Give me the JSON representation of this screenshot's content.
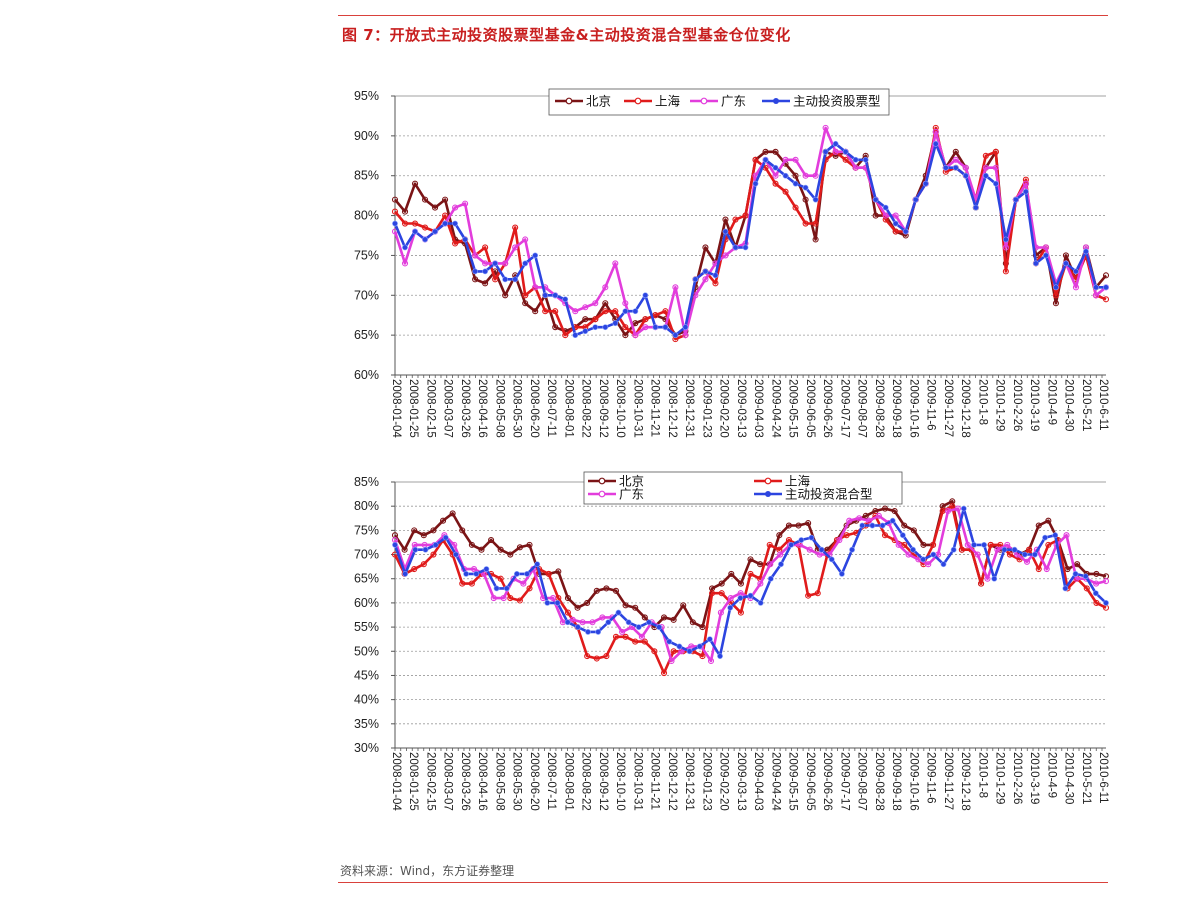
{
  "title": "图 7：开放式主动投资股票型基金&主动投资混合型基金仓位变化",
  "source": "资料来源：Wind，东方证券整理",
  "colors": {
    "beijing": "#7b1416",
    "shanghai": "#e01b1b",
    "guangdong": "#e23ddc",
    "fund": "#2c45e0",
    "accent": "#c81f1f"
  },
  "chart_data": [
    {
      "type": "line",
      "title": "",
      "ylim": [
        60,
        95
      ],
      "y_ticks": [
        "95%",
        "90%",
        "85%",
        "80%",
        "75%",
        "70%",
        "65%",
        "60%"
      ],
      "x_ticks": [
        "2008-01-04",
        "2008-01-25",
        "2008-02-15",
        "2008-03-07",
        "2008-03-26",
        "2008-04-16",
        "2008-05-08",
        "2008-05-30",
        "2008-06-20",
        "2008-07-11",
        "2008-08-01",
        "2008-08-22",
        "2008-09-12",
        "2008-10-10",
        "2008-10-31",
        "2008-11-21",
        "2008-12-12",
        "2008-12-31",
        "2009-01-23",
        "2009-02-20",
        "2009-03-13",
        "2009-04-03",
        "2009-04-24",
        "2009-05-15",
        "2009-06-05",
        "2009-06-26",
        "2009-07-17",
        "2009-08-07",
        "2009-08-28",
        "2009-09-18",
        "2009-10-16",
        "2009-11-6",
        "2009-11-27",
        "2009-12-18",
        "2010-1-8",
        "2010-1-29",
        "2010-2-26",
        "2010-3-19",
        "2010-4-9",
        "2010-4-30",
        "2010-5-21",
        "2010-6-11"
      ],
      "series": [
        {
          "name": "北京",
          "key": "beijing",
          "values": [
            82,
            80.5,
            84,
            82,
            81,
            82,
            77,
            76.5,
            72,
            71.5,
            73,
            70,
            72.5,
            69,
            68,
            70,
            66,
            65.5,
            66,
            67,
            67,
            69,
            67,
            65,
            66.5,
            67,
            67.5,
            67,
            65,
            65.5,
            71,
            76,
            74,
            79.5,
            76,
            80,
            87,
            88,
            88,
            86.5,
            85,
            82,
            77,
            88,
            87.5,
            88,
            86,
            87.5,
            80,
            80,
            78,
            77.5,
            82,
            85,
            90.5,
            86,
            88,
            86,
            81,
            86,
            88,
            74,
            82,
            84,
            75,
            76,
            69,
            75,
            72,
            76,
            71,
            72.5
          ]
        },
        {
          "name": "上海",
          "key": "shanghai",
          "values": [
            80.5,
            79,
            79,
            78.5,
            78,
            80,
            76.5,
            77,
            75,
            76,
            72,
            74,
            78.5,
            70,
            71,
            68,
            68,
            65,
            66,
            66,
            67,
            68,
            68,
            66,
            65,
            67,
            67.5,
            68,
            64.5,
            65,
            72,
            73,
            71.5,
            77,
            79.5,
            80,
            87,
            86,
            84,
            83,
            81,
            79,
            79,
            87,
            88,
            87,
            86,
            86,
            82,
            79.5,
            78,
            78,
            82,
            84,
            91,
            85.5,
            86,
            85,
            82,
            87.5,
            88,
            73,
            82,
            84.5,
            74,
            76,
            70,
            74,
            72,
            75,
            70,
            69.5
          ]
        },
        {
          "name": "广东",
          "key": "guangdong",
          "values": [
            78,
            74,
            78,
            77,
            78,
            79,
            81,
            81.5,
            75,
            74,
            74,
            74,
            76,
            77,
            71,
            71,
            70,
            69,
            68,
            68.5,
            69,
            71,
            74,
            69,
            65,
            66,
            66,
            66,
            71,
            65,
            70,
            72,
            74,
            75,
            76,
            76.5,
            85,
            87,
            85,
            87,
            87,
            85,
            85,
            91,
            88,
            88,
            86,
            86,
            82,
            80,
            80,
            78,
            82,
            84,
            90.5,
            86,
            87,
            86,
            82,
            86,
            86,
            76,
            82,
            84,
            76,
            76,
            71.5,
            74,
            71,
            76,
            70,
            71
          ]
        },
        {
          "name": "主动投资股票型",
          "key": "fund",
          "values": [
            79,
            76,
            78,
            77,
            78,
            79,
            79,
            77,
            73,
            73,
            74,
            72,
            72,
            74,
            75,
            70,
            70,
            69.5,
            65,
            65.5,
            66,
            66,
            66.5,
            68,
            68,
            70,
            66,
            66,
            65,
            66,
            72,
            73,
            72.5,
            78,
            76,
            76,
            84,
            87,
            86,
            85,
            84,
            83.5,
            82,
            88,
            89,
            88,
            87,
            87,
            82,
            81,
            79,
            78,
            82,
            84,
            89,
            86,
            86,
            85,
            81,
            85,
            84,
            77,
            82,
            83,
            74,
            75,
            71,
            74,
            73,
            75.5,
            71,
            71
          ]
        }
      ]
    },
    {
      "type": "line",
      "title": "",
      "ylim": [
        30,
        85
      ],
      "y_ticks": [
        "85%",
        "80%",
        "75%",
        "70%",
        "65%",
        "60%",
        "55%",
        "50%",
        "45%",
        "40%",
        "35%",
        "30%"
      ],
      "x_ticks": [
        "2008-01-04",
        "2008-01-25",
        "2008-02-15",
        "2008-03-07",
        "2008-03-26",
        "2008-04-16",
        "2008-05-08",
        "2008-05-30",
        "2008-06-20",
        "2008-07-11",
        "2008-08-01",
        "2008-08-22",
        "2008-09-12",
        "2008-10-10",
        "2008-10-31",
        "2008-11-21",
        "2008-12-12",
        "2008-12-31",
        "2009-01-23",
        "2009-02-20",
        "2009-03-13",
        "2009-04-03",
        "2009-04-24",
        "2009-05-15",
        "2009-06-05",
        "2009-06-26",
        "2009-07-17",
        "2009-08-07",
        "2009-08-28",
        "2009-09-18",
        "2009-10-16",
        "2009-11-6",
        "2009-11-27",
        "2009-12-18",
        "2010-1-8",
        "2010-1-29",
        "2010-2-26",
        "2010-3-19",
        "2010-4-9",
        "2010-4-30",
        "2010-5-21",
        "2010-6-11"
      ],
      "series": [
        {
          "name": "北京",
          "key": "beijing",
          "values": [
            74,
            71,
            75,
            74,
            75,
            77,
            78.5,
            75,
            72,
            71,
            73,
            71,
            70,
            71.5,
            72,
            66,
            66,
            66.5,
            61,
            59,
            60,
            62.5,
            63,
            62.5,
            59.5,
            59,
            57,
            55,
            57,
            56.5,
            59.5,
            56,
            55,
            63,
            64,
            66,
            64,
            69,
            68,
            68,
            74,
            76,
            76,
            76.5,
            71,
            71,
            73,
            76,
            77,
            78,
            79,
            79.5,
            79,
            76,
            75,
            72,
            72,
            80,
            81,
            71,
            71,
            64,
            72,
            71,
            71,
            70,
            71,
            76,
            77,
            73,
            67,
            68,
            66,
            66,
            65.5
          ]
        },
        {
          "name": "上海",
          "key": "shanghai",
          "values": [
            70,
            66,
            67,
            68,
            70,
            73,
            70,
            64,
            64,
            66,
            66,
            65,
            61,
            60.5,
            63,
            67,
            66,
            61,
            58,
            55,
            49,
            48.5,
            49,
            53,
            53,
            52,
            52,
            50,
            45.5,
            50,
            50,
            50,
            49,
            62,
            62,
            60,
            58,
            66,
            65,
            72,
            71,
            73,
            72,
            61.5,
            62,
            70,
            73,
            74,
            74.5,
            76,
            78,
            74,
            73,
            72,
            70,
            68,
            72,
            79,
            80,
            71,
            71,
            64,
            72,
            72,
            70,
            69,
            71,
            67,
            72,
            73,
            63,
            65,
            63,
            60,
            59
          ]
        },
        {
          "name": "广东",
          "key": "guangdong",
          "values": [
            73,
            67,
            72,
            72,
            72,
            74,
            72,
            67,
            67,
            66,
            61,
            61,
            65,
            64,
            67,
            61,
            61,
            56,
            56.5,
            56,
            56,
            57,
            57,
            54,
            55,
            53,
            56,
            55,
            48,
            50,
            51,
            51,
            48,
            58,
            61,
            62,
            61,
            64,
            68,
            70,
            72,
            72,
            71,
            70,
            70,
            73,
            77,
            77.5,
            77,
            78,
            76.5,
            72,
            70,
            69,
            68,
            70,
            79,
            79.5,
            72,
            70,
            65,
            71,
            72,
            70,
            68.5,
            71,
            67,
            72,
            74,
            65,
            65,
            64,
            64.5
          ]
        },
        {
          "name": "主动投资混合型",
          "key": "fund",
          "values": [
            72,
            66,
            71,
            71,
            72,
            73.5,
            70,
            66,
            66,
            67,
            63,
            63,
            66,
            66,
            68,
            60,
            60,
            56,
            55,
            54,
            54,
            56,
            58,
            56,
            55,
            56,
            55,
            52,
            51,
            50,
            51,
            52.5,
            49,
            59,
            61,
            61.5,
            60,
            65,
            68,
            72,
            73,
            73.5,
            71,
            69,
            66,
            71,
            76,
            76,
            76,
            77,
            74,
            71,
            69,
            70,
            68,
            71,
            79.5,
            72,
            72,
            65,
            71,
            71,
            70,
            70,
            73.5,
            74,
            63,
            66,
            65.5,
            62,
            60
          ]
        }
      ]
    }
  ]
}
